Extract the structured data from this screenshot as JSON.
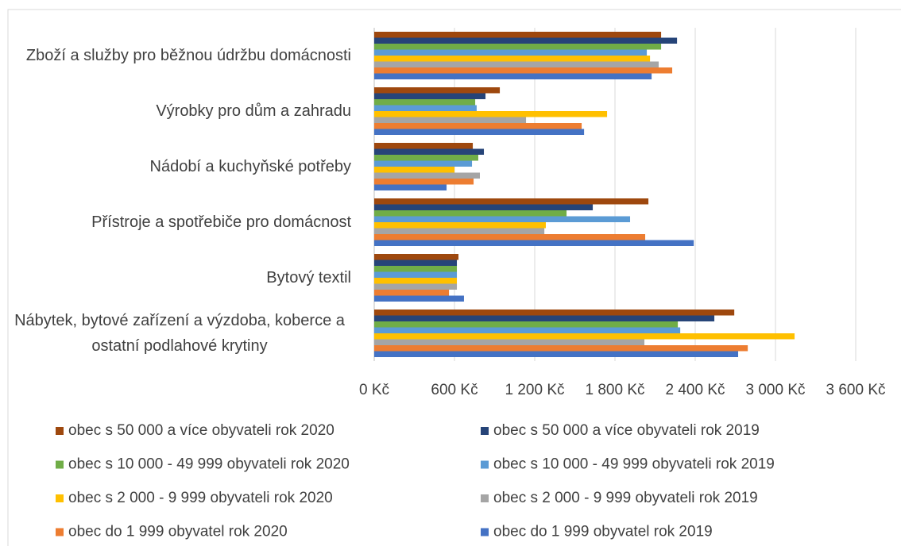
{
  "chart_data": {
    "type": "bar",
    "orientation": "horizontal",
    "categories": [
      "Zboží a služby pro běžnou údržbu domácnosti",
      "Výrobky pro dům a zahradu",
      "Nádobí a kuchyňské potřeby",
      "Přístroje a spotřebiče pro domácnost",
      "Bytový textil",
      "Nábytek, bytové zařízení a výzdoba, koberce a ostatní podlahové krytiny"
    ],
    "series": [
      {
        "name": "obec s 50 000 a více obyvateli rok 2020",
        "color": "#9e480e",
        "values": [
          2145,
          939,
          737,
          2050,
          630,
          2692
        ]
      },
      {
        "name": "obec s 50 000 a více obyvateli rok 2019",
        "color": "#264478",
        "values": [
          2264,
          832,
          820,
          1634,
          618,
          2543
        ]
      },
      {
        "name": "obec s 10 000 - 49 999 obyvateli rok 2020",
        "color": "#70ad47",
        "values": [
          2145,
          755,
          778,
          1438,
          618,
          2270
        ]
      },
      {
        "name": "obec s 10 000 - 49 999 obyvateli rok 2019",
        "color": "#5b9bd5",
        "values": [
          2038,
          766,
          731,
          1913,
          618,
          2288
        ]
      },
      {
        "name": "obec s 2 000 - 9 999 obyvateli rok 2020",
        "color": "#ffc000",
        "values": [
          2062,
          1741,
          600,
          1283,
          618,
          3143
        ]
      },
      {
        "name": "obec s 2 000 - 9 999 obyvateli rok 2019",
        "color": "#a5a5a5",
        "values": [
          2127,
          1135,
          790,
          1272,
          618,
          2020
        ]
      },
      {
        "name": "obec do 1 999 obyvatel rok 2020",
        "color": "#ed7d31",
        "values": [
          2228,
          1551,
          743,
          2026,
          559,
          2793
        ]
      },
      {
        "name": "obec do 1 999 obyvatel rok 2019",
        "color": "#4472c4",
        "values": [
          2074,
          1569,
          541,
          2389,
          671,
          2721
        ]
      }
    ],
    "xlim": [
      0,
      3600
    ],
    "xticks": [
      {
        "value": 0,
        "label": "0 Kč"
      },
      {
        "value": 600,
        "label": "600 Kč"
      },
      {
        "value": 1200,
        "label": "1 200 Kč"
      },
      {
        "value": 1800,
        "label": "1 800 Kč"
      },
      {
        "value": 2400,
        "label": "2 400 Kč"
      },
      {
        "value": 3000,
        "label": "3 000 Kč"
      },
      {
        "value": 3600,
        "label": "3 600 Kč"
      }
    ],
    "grid": true,
    "legend": "bottom"
  }
}
